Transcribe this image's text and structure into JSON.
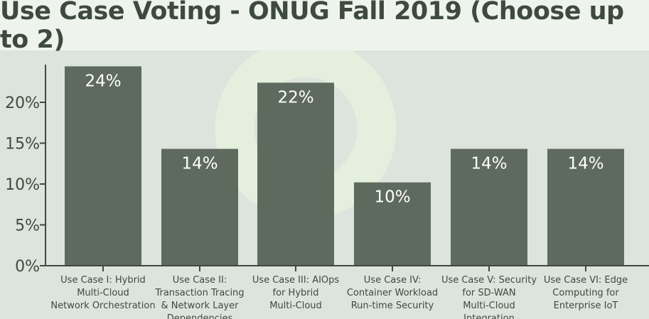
{
  "chart_data": {
    "type": "bar",
    "title": "Use Case Voting - ONUG Fall 2019 (Choose up to 2)",
    "categories": [
      [
        "Use Case I: Hybrid",
        "Multi-Cloud",
        "Network Orchestration"
      ],
      [
        "Use Case II:",
        "Transaction Tracing",
        "& Network Layer",
        "Dependencies"
      ],
      [
        "Use Case III: AIOps",
        "for Hybrid",
        "Multi-Cloud"
      ],
      [
        "Use Case IV:",
        "Container Workload",
        "Run-time Security"
      ],
      [
        "Use Case V: Security",
        "for SD-WAN",
        "Multi-Cloud",
        "Integration"
      ],
      [
        "Use Case VI: Edge",
        "Computing for",
        "Enterprise IoT"
      ]
    ],
    "values": [
      24.4,
      14.3,
      22.4,
      10.2,
      14.3,
      14.3
    ],
    "data_labels": [
      "24%",
      "14%",
      "22%",
      "10%",
      "14%",
      "14%"
    ],
    "yticks": [
      0,
      5,
      10,
      15,
      20
    ],
    "ytick_labels": [
      "0%",
      "5%",
      "10%",
      "15%",
      "20%"
    ],
    "ylim": [
      0,
      25
    ],
    "xlabel": "",
    "ylabel": "",
    "colors": {
      "bar": "#5f6a5e",
      "axis": "#3f4a3f",
      "watermark": "#e6f0de"
    }
  }
}
